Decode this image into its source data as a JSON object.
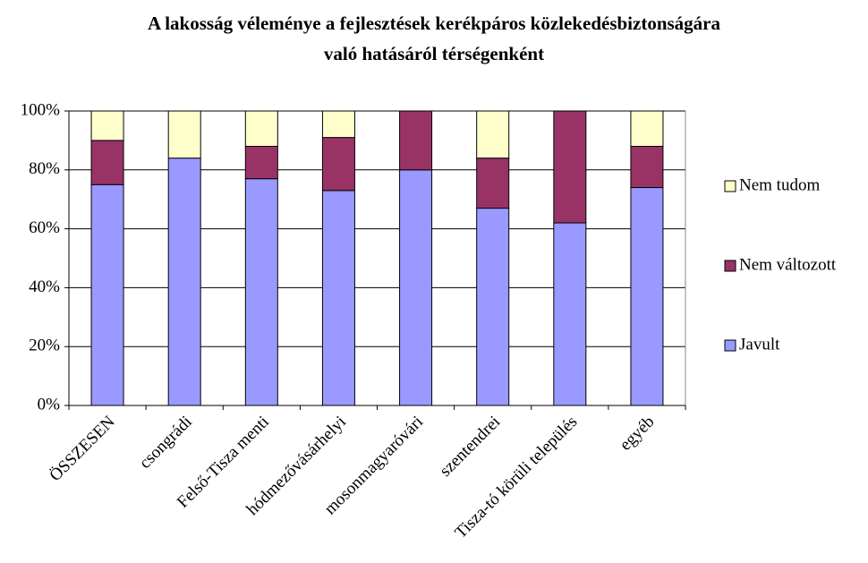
{
  "chart_data": {
    "type": "stacked_bar",
    "title": "A lakosság véleménye a fejlesztések kerékpáros közlekedésbiztonságára",
    "subtitle": "való hatásáról térségenként",
    "categories": [
      "ÖSSZESEN",
      "csongrádi",
      "Felső-Tisza menti",
      "hódmezővásárhelyi",
      "mosonmagyaróvári",
      "szentendrei",
      "Tisza-tó körüli település",
      "egyéb"
    ],
    "series": [
      {
        "name": "Javult",
        "color": "#9999ff",
        "values": [
          75,
          84,
          77,
          73,
          80,
          67,
          62,
          74
        ]
      },
      {
        "name": "Nem változott",
        "color": "#993366",
        "values": [
          15,
          0,
          11,
          18,
          20,
          17,
          38,
          14
        ]
      },
      {
        "name": "Nem tudom",
        "color": "#ffffcc",
        "values": [
          10,
          16,
          12,
          9,
          0,
          16,
          0,
          12
        ]
      }
    ],
    "ylim": [
      0,
      100
    ],
    "yticks": [
      {
        "value": 0,
        "label": "0%"
      },
      {
        "value": 20,
        "label": "20%"
      },
      {
        "value": 40,
        "label": "40%"
      },
      {
        "value": 60,
        "label": "60%"
      },
      {
        "value": 80,
        "label": "80%"
      },
      {
        "value": 100,
        "label": "100%"
      }
    ],
    "grid": true,
    "legend": "right"
  }
}
